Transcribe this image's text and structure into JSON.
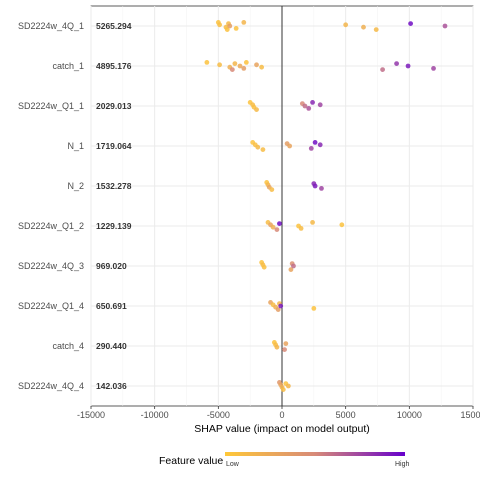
{
  "chart_data": {
    "type": "scatter",
    "subtype": "shap-beeswarm",
    "xlabel": "SHAP value (impact on model output)",
    "xlim": [
      -15000,
      15000
    ],
    "xticks": [
      -15000,
      -10000,
      -5000,
      0,
      5000,
      10000,
      15000
    ],
    "xtick_labels": [
      "-15000",
      "-10000",
      "-5000",
      "0",
      "5000",
      "10000",
      "15000"
    ],
    "grid": true,
    "zero_line": true,
    "legend": {
      "title": "Feature value",
      "low_label": "Low",
      "high_label": "High",
      "low_color": "#FFC838",
      "mid_color": "#D78A78",
      "high_color": "#6600CC",
      "placement": "bottom"
    },
    "features": [
      {
        "name": "SD2224w_4Q_1",
        "mean_abs": "5265.294",
        "points": [
          {
            "x": -5000,
            "v": 0.05
          },
          {
            "x": -4900,
            "v": 0.08
          },
          {
            "x": -4400,
            "v": 0.1
          },
          {
            "x": -4300,
            "v": 0.06
          },
          {
            "x": -4200,
            "v": 0.12
          },
          {
            "x": -4100,
            "v": 0.35
          },
          {
            "x": -3600,
            "v": 0.05
          },
          {
            "x": -3000,
            "v": 0.15
          },
          {
            "x": 5000,
            "v": 0.15
          },
          {
            "x": 6400,
            "v": 0.2
          },
          {
            "x": 7400,
            "v": 0.12
          },
          {
            "x": 10100,
            "v": 0.95
          },
          {
            "x": 12800,
            "v": 0.7
          }
        ]
      },
      {
        "name": "catch_1",
        "mean_abs": "4895.176",
        "points": [
          {
            "x": -5900,
            "v": 0.05
          },
          {
            "x": -4900,
            "v": 0.1
          },
          {
            "x": -4100,
            "v": 0.2
          },
          {
            "x": -3900,
            "v": 0.5
          },
          {
            "x": -3700,
            "v": 0.15
          },
          {
            "x": -3300,
            "v": 0.25
          },
          {
            "x": -3000,
            "v": 0.35
          },
          {
            "x": -2800,
            "v": 0.05
          },
          {
            "x": -2000,
            "v": 0.3
          },
          {
            "x": -1600,
            "v": 0.1
          },
          {
            "x": 7900,
            "v": 0.6
          },
          {
            "x": 9000,
            "v": 0.8
          },
          {
            "x": 9900,
            "v": 0.9
          },
          {
            "x": 11900,
            "v": 0.75
          }
        ]
      },
      {
        "name": "SD2224w_Q1_1",
        "mean_abs": "2029.013",
        "points": [
          {
            "x": -2500,
            "v": 0.05
          },
          {
            "x": -2300,
            "v": 0.1
          },
          {
            "x": -2200,
            "v": 0.08
          },
          {
            "x": -2000,
            "v": 0.12
          },
          {
            "x": 1600,
            "v": 0.5
          },
          {
            "x": 1800,
            "v": 0.6
          },
          {
            "x": 2100,
            "v": 0.7
          },
          {
            "x": 2400,
            "v": 0.85
          },
          {
            "x": 3000,
            "v": 0.75
          }
        ]
      },
      {
        "name": "N_1",
        "mean_abs": "1719.064",
        "points": [
          {
            "x": -2300,
            "v": 0.05
          },
          {
            "x": -2100,
            "v": 0.08
          },
          {
            "x": -1900,
            "v": 0.12
          },
          {
            "x": -1500,
            "v": 0.1
          },
          {
            "x": 400,
            "v": 0.35
          },
          {
            "x": 600,
            "v": 0.3
          },
          {
            "x": 2300,
            "v": 0.75
          },
          {
            "x": 2600,
            "v": 0.95
          },
          {
            "x": 3000,
            "v": 0.85
          }
        ]
      },
      {
        "name": "N_2",
        "mean_abs": "1532.278",
        "points": [
          {
            "x": -1200,
            "v": 0.05
          },
          {
            "x": -1100,
            "v": 0.15
          },
          {
            "x": -1000,
            "v": 0.3
          },
          {
            "x": -800,
            "v": 0.1
          },
          {
            "x": 2500,
            "v": 0.85
          },
          {
            "x": 2600,
            "v": 0.9
          },
          {
            "x": 3100,
            "v": 0.75
          }
        ]
      },
      {
        "name": "SD2224w_Q1_2",
        "mean_abs": "1229.139",
        "points": [
          {
            "x": -1100,
            "v": 0.1
          },
          {
            "x": -900,
            "v": 0.3
          },
          {
            "x": -700,
            "v": 0.2
          },
          {
            "x": -400,
            "v": 0.5
          },
          {
            "x": -200,
            "v": 0.95
          },
          {
            "x": 1300,
            "v": 0.05
          },
          {
            "x": 1500,
            "v": 0.1
          },
          {
            "x": 2400,
            "v": 0.12
          },
          {
            "x": 4700,
            "v": 0.05
          }
        ]
      },
      {
        "name": "SD2224w_4Q_3",
        "mean_abs": "969.020",
        "points": [
          {
            "x": -1600,
            "v": 0.05
          },
          {
            "x": -1500,
            "v": 0.1
          },
          {
            "x": -1400,
            "v": 0.08
          },
          {
            "x": 700,
            "v": 0.3
          },
          {
            "x": 800,
            "v": 0.45
          },
          {
            "x": 900,
            "v": 0.6
          }
        ]
      },
      {
        "name": "SD2224w_Q1_4",
        "mean_abs": "650.691",
        "points": [
          {
            "x": -900,
            "v": 0.3
          },
          {
            "x": -700,
            "v": 0.1
          },
          {
            "x": -500,
            "v": 0.2
          },
          {
            "x": -300,
            "v": 0.35
          },
          {
            "x": -200,
            "v": 0.15
          },
          {
            "x": -100,
            "v": 0.9
          },
          {
            "x": 2500,
            "v": 0.05
          }
        ]
      },
      {
        "name": "catch_4",
        "mean_abs": "290.440",
        "points": [
          {
            "x": -600,
            "v": 0.05
          },
          {
            "x": -500,
            "v": 0.1
          },
          {
            "x": -400,
            "v": 0.15
          },
          {
            "x": 200,
            "v": 0.5
          },
          {
            "x": 300,
            "v": 0.3
          }
        ]
      },
      {
        "name": "SD2224w_4Q_4",
        "mean_abs": "142.036",
        "points": [
          {
            "x": -200,
            "v": 0.4
          },
          {
            "x": -100,
            "v": 0.3
          },
          {
            "x": 0,
            "v": 0.2
          },
          {
            "x": 100,
            "v": 0.1
          },
          {
            "x": 300,
            "v": 0.05
          },
          {
            "x": 500,
            "v": 0.15
          }
        ]
      }
    ]
  }
}
